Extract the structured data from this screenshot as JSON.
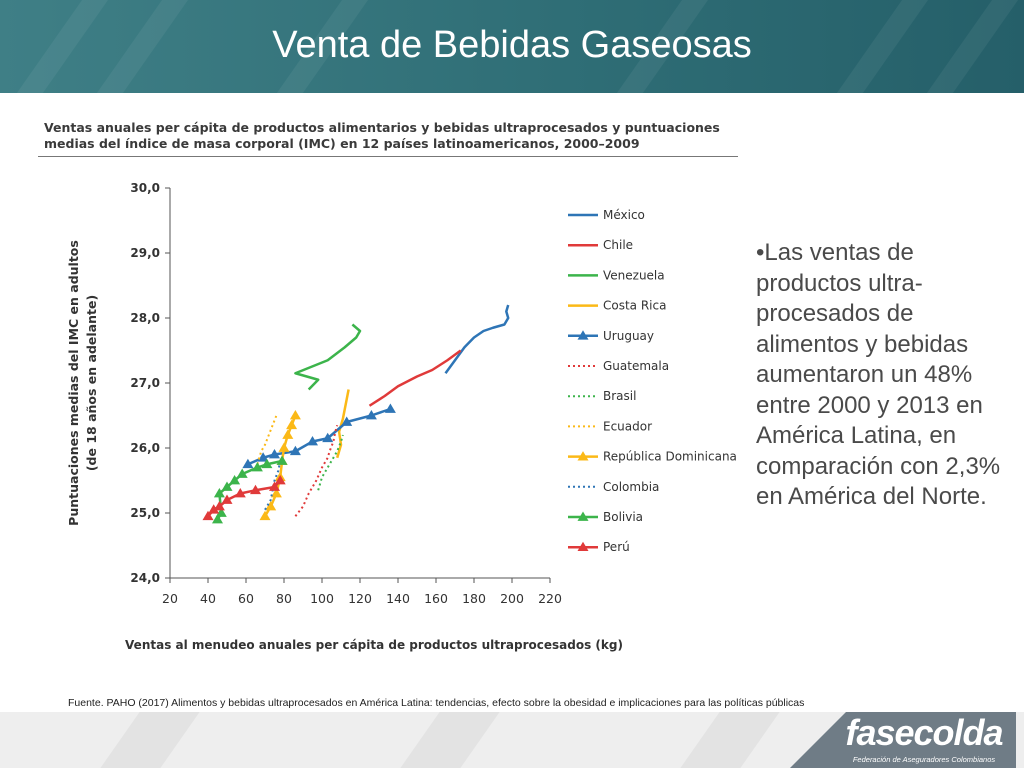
{
  "slide": {
    "title": "Venta de Bebidas Gaseosas",
    "bullet": "•Las ventas de productos ultra-procesados de alimentos y bebidas aumentaron un 48% entre 2000 y 2013 en América Latina, en comparación con 2,3% en América del Norte.",
    "source": "Fuente. PAHO (2017) Alimentos y bebidas ultraprocesados en América Latina: tendencias, efecto sobre la obesidad e implicaciones para las políticas públicas",
    "logo": "fasecolda",
    "logo_subtitle": "Federación de Aseguradores Colombianos"
  },
  "chart_data": {
    "type": "line",
    "title": "Ventas anuales per cápita de productos alimentarios y bebidas ultraprocesados y puntuaciones medias del índice de masa corporal (IMC) en 12 países latinoamericanos, 2000–2009",
    "xlabel": "Ventas al menudeo anuales per cápita de productos ultraprocesados (kg)",
    "ylabel": "Puntuaciones medias del IMC en adultos (de 18 años en adelante)",
    "xlim": [
      20,
      220
    ],
    "ylim": [
      24.0,
      30.0
    ],
    "x_ticks": [
      "20",
      "40",
      "60",
      "80",
      "100",
      "120",
      "140",
      "160",
      "180",
      "200",
      "220"
    ],
    "y_ticks": [
      "24,0",
      "25,0",
      "26,0",
      "27,0",
      "28,0",
      "29,0",
      "30,0"
    ],
    "legend_position": "right",
    "series": [
      {
        "name": "México",
        "color": "#2e75b6",
        "style": "solid",
        "marker": "none",
        "x": [
          165,
          170,
          175,
          180,
          185,
          190,
          196,
          198,
          197,
          198
        ],
        "y": [
          27.15,
          27.35,
          27.55,
          27.7,
          27.8,
          27.85,
          27.9,
          28.0,
          28.1,
          28.2
        ]
      },
      {
        "name": "Chile",
        "color": "#e03a3a",
        "style": "solid",
        "marker": "none",
        "x": [
          125,
          133,
          140,
          150,
          158,
          166,
          173
        ],
        "y": [
          26.65,
          26.8,
          26.95,
          27.1,
          27.2,
          27.35,
          27.5
        ]
      },
      {
        "name": "Venezuela",
        "color": "#3cb44b",
        "style": "solid",
        "marker": "none",
        "x": [
          93,
          98,
          86,
          103,
          112,
          118,
          120,
          116
        ],
        "y": [
          26.9,
          27.05,
          27.15,
          27.35,
          27.55,
          27.7,
          27.8,
          27.9
        ]
      },
      {
        "name": "Costa Rica",
        "color": "#fbb917",
        "style": "solid",
        "marker": "none",
        "x": [
          108,
          110,
          109,
          111,
          112,
          113,
          114
        ],
        "y": [
          25.85,
          26.05,
          26.25,
          26.45,
          26.6,
          26.75,
          26.9
        ]
      },
      {
        "name": "Uruguay",
        "color": "#2e75b6",
        "style": "solid",
        "marker": "triangle",
        "x": [
          61,
          69,
          75,
          86,
          95,
          103,
          113,
          126,
          136
        ],
        "y": [
          25.75,
          25.85,
          25.9,
          25.95,
          26.1,
          26.15,
          26.4,
          26.5,
          26.6
        ]
      },
      {
        "name": "Guatemala",
        "color": "#e03a3a",
        "style": "dotted",
        "marker": "none",
        "x": [
          86,
          90,
          93,
          97,
          100,
          103,
          104,
          106,
          107,
          108
        ],
        "y": [
          24.95,
          25.1,
          25.3,
          25.5,
          25.7,
          25.85,
          25.95,
          26.1,
          26.25,
          26.35
        ]
      },
      {
        "name": "Brasil",
        "color": "#3cb44b",
        "style": "dotted",
        "marker": "none",
        "x": [
          98,
          100,
          103,
          106,
          108,
          110,
          111
        ],
        "y": [
          25.35,
          25.55,
          25.7,
          25.85,
          25.95,
          26.1,
          26.2
        ]
      },
      {
        "name": "Ecuador",
        "color": "#fbb917",
        "style": "dotted",
        "marker": "none",
        "x": [
          66,
          68,
          70,
          72,
          74,
          76
        ],
        "y": [
          25.75,
          25.95,
          26.05,
          26.2,
          26.35,
          26.5
        ]
      },
      {
        "name": "República Dominicana",
        "color": "#fbb917",
        "style": "solid",
        "marker": "triangle",
        "x": [
          70,
          73,
          76,
          78,
          79,
          80,
          82,
          84,
          86
        ],
        "y": [
          24.95,
          25.1,
          25.3,
          25.55,
          25.8,
          26.0,
          26.2,
          26.35,
          26.5
        ]
      },
      {
        "name": "Colombia",
        "color": "#2e75b6",
        "style": "dotted",
        "marker": "none",
        "x": [
          70,
          73,
          74,
          75,
          77,
          78
        ],
        "y": [
          25.05,
          25.2,
          25.35,
          25.5,
          25.65,
          25.8
        ]
      },
      {
        "name": "Bolivia",
        "color": "#3cb44b",
        "style": "solid",
        "marker": "triangle",
        "x": [
          45,
          47,
          46,
          50,
          54,
          58,
          66,
          71,
          79
        ],
        "y": [
          24.9,
          25.0,
          25.3,
          25.4,
          25.5,
          25.6,
          25.7,
          25.75,
          25.8
        ]
      },
      {
        "name": "Perú",
        "color": "#e03a3a",
        "style": "solid",
        "marker": "triangle",
        "x": [
          40,
          43,
          46,
          50,
          57,
          65,
          75,
          78
        ],
        "y": [
          24.95,
          25.05,
          25.1,
          25.2,
          25.3,
          25.35,
          25.4,
          25.5
        ]
      }
    ]
  }
}
